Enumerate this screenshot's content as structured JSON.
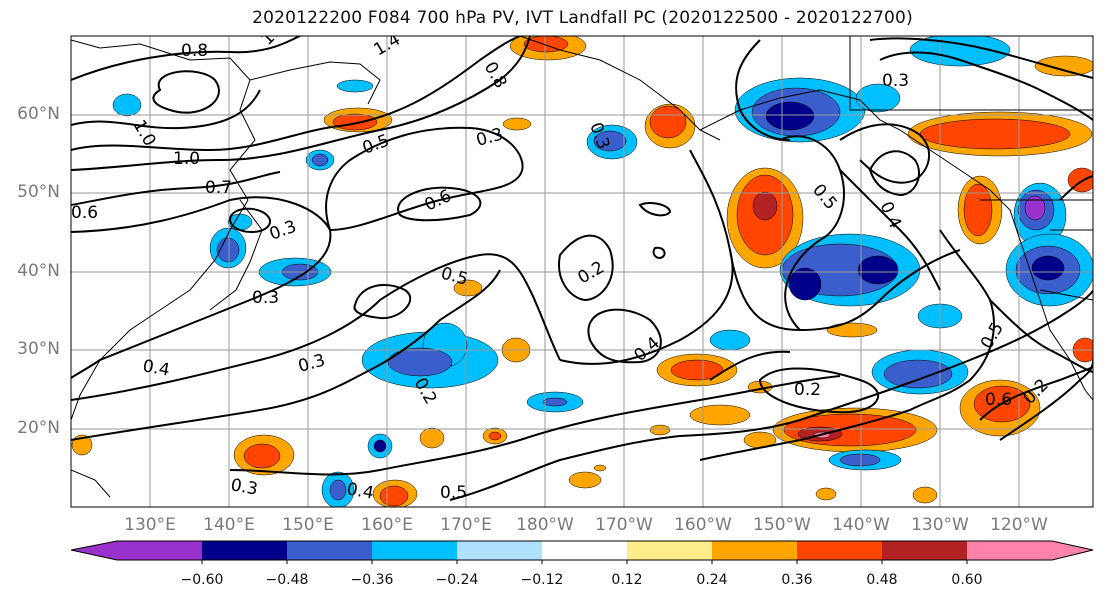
{
  "title": "2020122200 F084 700 hPa PV, IVT Landfall PC (2020122500 - 2020122700)",
  "lat_labels": [
    "60°N",
    "50°N",
    "40°N",
    "30°N",
    "20°N"
  ],
  "lon_labels": [
    "130°E",
    "140°E",
    "150°E",
    "160°E",
    "170°E",
    "180°W",
    "170°W",
    "160°W",
    "150°W",
    "140°W",
    "130°W",
    "120°W"
  ],
  "colorbar": {
    "ticks": [
      "−0.60",
      "−0.48",
      "−0.36",
      "−0.24",
      "−0.12",
      "0.12",
      "0.24",
      "0.36",
      "0.48",
      "0.60"
    ],
    "colors": [
      "#9932cc",
      "#00008b",
      "#3a5fcd",
      "#00bfff",
      "#b0e2ff",
      "#ffffff",
      "#ffec8b",
      "#ffa500",
      "#ff4500",
      "#b22222",
      "#ff82ab"
    ]
  },
  "contour_labels": [
    "0.8",
    "1.0",
    "1.4",
    "1.0",
    "0.5",
    "0.3",
    "0.3",
    "0.8",
    "1.0",
    "0.7",
    "0.6",
    "0.6",
    "0.3",
    "0.3",
    "0.5",
    "0.2",
    "0.4",
    "0.3",
    "0.4",
    "0.2",
    "0.2",
    "0.3",
    "0.4",
    "0.5",
    "0.5",
    "0.4",
    "0.6",
    "0.2",
    "0.5",
    "0.3"
  ],
  "shading_colors": {
    "dark_blue": "#00008b",
    "blue": "#3a5fcd",
    "sky": "#00bfff",
    "orange": "#ffa500",
    "red_orange": "#ff4500",
    "dark_red": "#b22222",
    "yellow": "#ffec8b"
  }
}
